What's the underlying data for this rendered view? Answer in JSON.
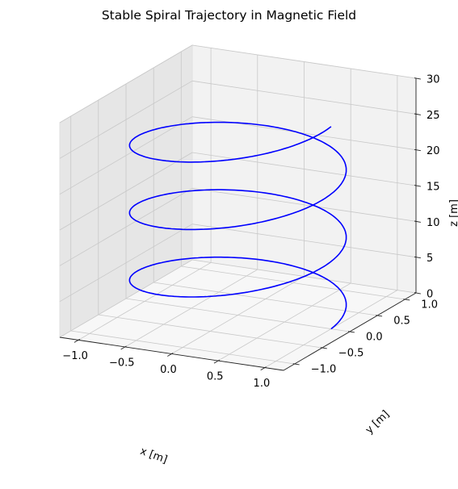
{
  "chart_data": {
    "type": "line",
    "projection": "3d",
    "title": "Stable Spiral Trajectory in Magnetic Field",
    "xlabel": "x [m]",
    "ylabel": "y [m]",
    "zlabel": "z [m]",
    "xlim": [
      -1.2,
      1.2
    ],
    "ylim": [
      -1.2,
      1.2
    ],
    "zlim": [
      0,
      30
    ],
    "xticks": [
      "−1.0",
      "−0.5",
      "0.0",
      "0.5",
      "1.0"
    ],
    "yticks": [
      "−1.0",
      "−0.5",
      "0.0",
      "0.5",
      "1.0"
    ],
    "zticks": [
      "0",
      "5",
      "10",
      "15",
      "20",
      "25",
      "30"
    ],
    "grid": true,
    "series": [
      {
        "color": "#0000ff",
        "parametric": {
          "x": "cos(t)",
          "y": "sin(t)",
          "z": "1.5 * t",
          "t_range": [
            0,
            18.85
          ]
        }
      }
    ]
  }
}
